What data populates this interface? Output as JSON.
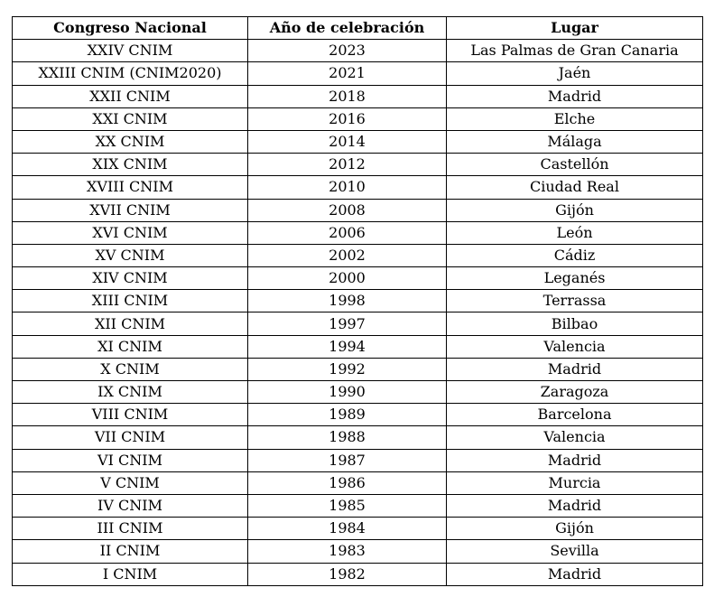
{
  "table": {
    "headers": [
      "Congreso Nacional",
      "Año de celebración",
      "Lugar"
    ],
    "rows": [
      [
        "XXIV CNIM",
        "2023",
        "Las Palmas de Gran Canaria"
      ],
      [
        "XXIII CNIM (CNIM2020)",
        "2021",
        "Jaén"
      ],
      [
        "XXII CNIM",
        "2018",
        "Madrid"
      ],
      [
        "XXI CNIM",
        "2016",
        "Elche"
      ],
      [
        "XX CNIM",
        "2014",
        "Málaga"
      ],
      [
        "XIX CNIM",
        "2012",
        "Castellón"
      ],
      [
        "XVIII CNIM",
        "2010",
        "Ciudad Real"
      ],
      [
        "XVII CNIM",
        "2008",
        "Gijón"
      ],
      [
        "XVI CNIM",
        "2006",
        "León"
      ],
      [
        "XV CNIM",
        "2002",
        "Cádiz"
      ],
      [
        "XIV CNIM",
        "2000",
        "Leganés"
      ],
      [
        "XIII CNIM",
        "1998",
        "Terrassa"
      ],
      [
        "XII CNIM",
        "1997",
        "Bilbao"
      ],
      [
        "XI CNIM",
        "1994",
        "Valencia"
      ],
      [
        "X CNIM",
        "1992",
        "Madrid"
      ],
      [
        "IX CNIM",
        "1990",
        "Zaragoza"
      ],
      [
        "VIII CNIM",
        "1989",
        "Barcelona"
      ],
      [
        "VII CNIM",
        "1988",
        "Valencia"
      ],
      [
        "VI CNIM",
        "1987",
        "Madrid"
      ],
      [
        "V CNIM",
        "1986",
        "Murcia"
      ],
      [
        "IV CNIM",
        "1985",
        "Madrid"
      ],
      [
        "III CNIM",
        "1984",
        "Gijón"
      ],
      [
        "II CNIM",
        "1983",
        "Sevilla"
      ],
      [
        "I CNIM",
        "1982",
        "Madrid"
      ]
    ]
  }
}
